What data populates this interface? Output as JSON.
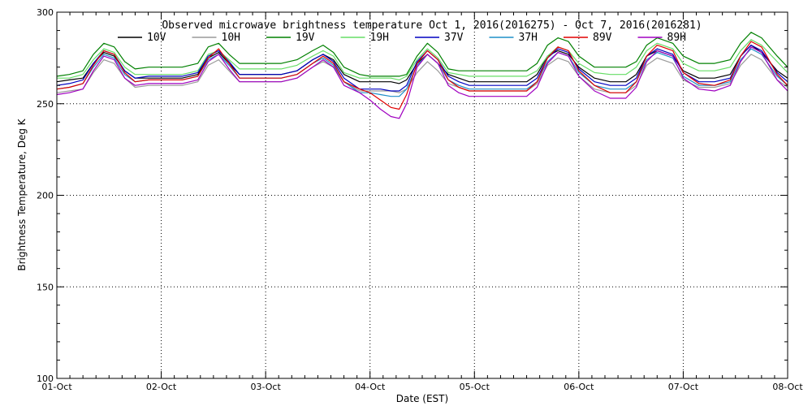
{
  "chart_data": {
    "type": "line",
    "title": "Observed microwave brightness temperature Oct  1, 2016(2016275) - Oct  7, 2016(2016281)",
    "xlabel": "Date (EST)",
    "ylabel": "Brightness Temperature, Deg K",
    "ylim": [
      100,
      300
    ],
    "yticks": [
      100,
      150,
      200,
      250,
      300
    ],
    "xlim": [
      "2016-10-01",
      "2016-10-08"
    ],
    "x_tick_labels": [
      "01-Oct",
      "02-Oct",
      "03-Oct",
      "04-Oct",
      "05-Oct",
      "06-Oct",
      "07-Oct",
      "08-Oct"
    ],
    "grid": true,
    "legend_position": "top",
    "x_days": [
      0,
      0.12,
      0.25,
      0.35,
      0.45,
      0.55,
      0.65,
      0.75,
      0.88,
      1.0,
      1.2,
      1.35,
      1.45,
      1.55,
      1.65,
      1.75,
      1.9,
      2.0,
      2.15,
      2.3,
      2.45,
      2.55,
      2.65,
      2.75,
      2.9,
      3.0,
      3.1,
      3.2,
      3.28,
      3.35,
      3.45,
      3.55,
      3.65,
      3.75,
      3.85,
      3.95,
      4.05,
      4.2,
      4.35,
      4.5,
      4.6,
      4.7,
      4.8,
      4.9,
      5.0,
      5.15,
      5.3,
      5.45,
      5.55,
      5.65,
      5.75,
      5.9,
      6.0,
      6.15,
      6.3,
      6.45,
      6.55,
      6.65,
      6.75,
      6.9,
      7.0
    ],
    "series": [
      {
        "name": "10V",
        "color": "#000000",
        "values": [
          262,
          263,
          264,
          272,
          278,
          276,
          268,
          264,
          264,
          264,
          264,
          266,
          275,
          278,
          272,
          266,
          266,
          266,
          266,
          268,
          274,
          277,
          274,
          266,
          262,
          262,
          262,
          262,
          261,
          263,
          272,
          277,
          272,
          266,
          264,
          262,
          262,
          262,
          262,
          262,
          266,
          276,
          279,
          277,
          270,
          264,
          262,
          262,
          266,
          276,
          279,
          276,
          268,
          264,
          264,
          266,
          276,
          282,
          278,
          268,
          264
        ]
      },
      {
        "name": "10H",
        "color": "#9a9a9a",
        "values": [
          256,
          257,
          258,
          267,
          274,
          272,
          264,
          259,
          260,
          260,
          260,
          262,
          271,
          274,
          268,
          262,
          262,
          262,
          262,
          264,
          270,
          273,
          270,
          262,
          257,
          257,
          257,
          257,
          256,
          258,
          267,
          273,
          268,
          261,
          259,
          257,
          257,
          257,
          257,
          257,
          261,
          271,
          275,
          273,
          265,
          258,
          256,
          256,
          260,
          271,
          275,
          272,
          263,
          259,
          259,
          261,
          271,
          277,
          274,
          263,
          259
        ]
      },
      {
        "name": "19V",
        "color": "#008000",
        "values": [
          265,
          266,
          268,
          277,
          283,
          281,
          273,
          269,
          270,
          270,
          270,
          272,
          281,
          283,
          277,
          272,
          272,
          272,
          272,
          274,
          279,
          282,
          278,
          270,
          266,
          265,
          265,
          265,
          265,
          266,
          276,
          283,
          278,
          269,
          268,
          268,
          268,
          268,
          268,
          268,
          272,
          282,
          286,
          284,
          276,
          270,
          270,
          270,
          273,
          282,
          286,
          283,
          276,
          272,
          272,
          274,
          283,
          289,
          286,
          276,
          270
        ]
      },
      {
        "name": "19H",
        "color": "#66dd66",
        "values": [
          264,
          264,
          266,
          274,
          280,
          278,
          270,
          266,
          266,
          266,
          266,
          268,
          277,
          279,
          274,
          269,
          269,
          269,
          269,
          271,
          276,
          279,
          276,
          267,
          264,
          264,
          264,
          264,
          263,
          265,
          274,
          280,
          275,
          267,
          266,
          265,
          265,
          265,
          265,
          265,
          268,
          276,
          281,
          279,
          272,
          267,
          266,
          266,
          270,
          279,
          283,
          280,
          272,
          268,
          268,
          270,
          279,
          285,
          282,
          273,
          267
        ]
      },
      {
        "name": "37V",
        "color": "#0000c0",
        "values": [
          260,
          261,
          263,
          272,
          279,
          277,
          268,
          264,
          265,
          265,
          265,
          267,
          276,
          279,
          273,
          266,
          266,
          266,
          266,
          268,
          274,
          277,
          273,
          264,
          258,
          258,
          258,
          257,
          257,
          260,
          273,
          279,
          274,
          265,
          262,
          260,
          260,
          260,
          260,
          260,
          264,
          275,
          280,
          278,
          269,
          262,
          260,
          260,
          264,
          276,
          280,
          277,
          267,
          262,
          262,
          264,
          276,
          282,
          279,
          267,
          262
        ]
      },
      {
        "name": "37H",
        "color": "#1f8fc8",
        "values": [
          258,
          259,
          261,
          270,
          277,
          275,
          266,
          262,
          263,
          263,
          263,
          265,
          274,
          277,
          271,
          264,
          264,
          264,
          264,
          266,
          272,
          275,
          271,
          262,
          256,
          256,
          255,
          254,
          254,
          258,
          271,
          277,
          272,
          263,
          260,
          258,
          258,
          258,
          258,
          258,
          262,
          273,
          278,
          276,
          267,
          260,
          258,
          258,
          262,
          274,
          278,
          275,
          265,
          260,
          260,
          262,
          274,
          280,
          277,
          265,
          260
        ]
      },
      {
        "name": "89V",
        "color": "#e00000",
        "values": [
          258,
          259,
          261,
          271,
          279,
          277,
          267,
          262,
          263,
          263,
          263,
          265,
          275,
          280,
          272,
          264,
          264,
          264,
          264,
          266,
          272,
          276,
          272,
          262,
          258,
          256,
          252,
          248,
          247,
          255,
          272,
          279,
          274,
          263,
          259,
          257,
          257,
          257,
          257,
          257,
          262,
          275,
          281,
          279,
          268,
          260,
          256,
          256,
          262,
          276,
          282,
          279,
          267,
          261,
          260,
          263,
          276,
          284,
          281,
          266,
          260
        ]
      },
      {
        "name": "89H",
        "color": "#a000c0",
        "values": [
          255,
          256,
          258,
          268,
          276,
          274,
          264,
          260,
          261,
          261,
          261,
          263,
          273,
          277,
          269,
          262,
          262,
          262,
          262,
          264,
          270,
          274,
          270,
          260,
          256,
          252,
          247,
          243,
          242,
          250,
          270,
          277,
          272,
          260,
          256,
          254,
          254,
          254,
          254,
          254,
          259,
          272,
          278,
          276,
          265,
          257,
          253,
          253,
          259,
          273,
          279,
          276,
          264,
          258,
          257,
          260,
          273,
          281,
          278,
          263,
          257
        ]
      }
    ]
  }
}
